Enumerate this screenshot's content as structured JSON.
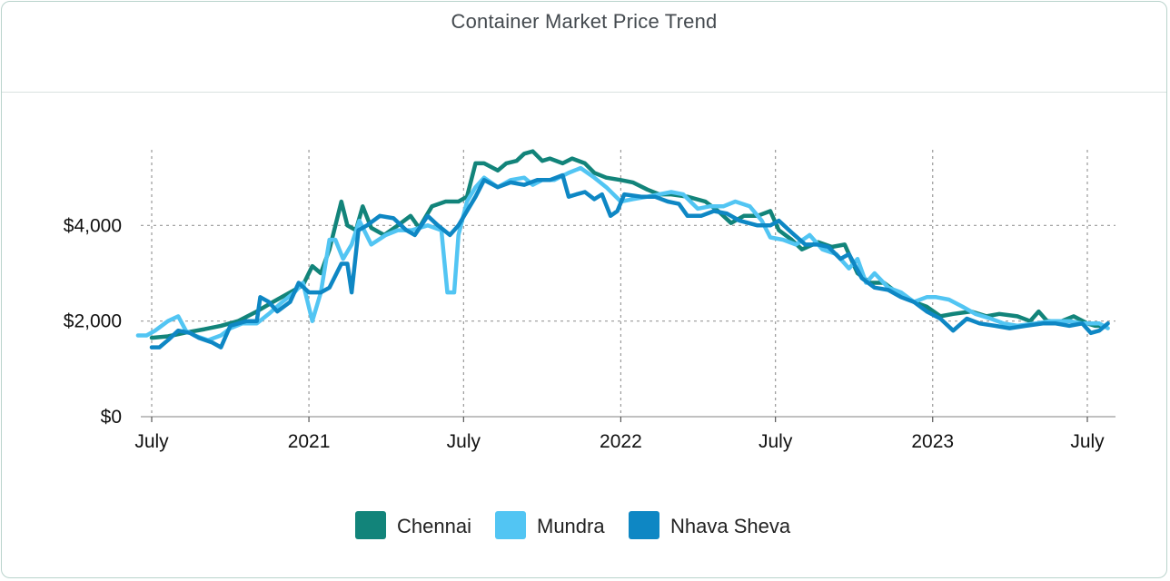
{
  "header": {
    "title": "Container Market Price Trend"
  },
  "colors": {
    "Chennai": "#12847a",
    "Mundra": "#52c5f3",
    "Nhava Sheva": "#0e87c4",
    "grid": "#9a9a9a",
    "border": "#b9d3cc"
  },
  "chart_data": {
    "type": "line",
    "title": "Container Market Price Trend",
    "xlabel": "",
    "ylabel": "",
    "x_ticks": [
      {
        "date": "2020-07-01",
        "label": "July"
      },
      {
        "date": "2021-01-01",
        "label": "2021"
      },
      {
        "date": "2021-07-01",
        "label": "July"
      },
      {
        "date": "2022-01-01",
        "label": "2022"
      },
      {
        "date": "2022-07-01",
        "label": "July"
      },
      {
        "date": "2023-01-01",
        "label": "2023"
      },
      {
        "date": "2023-07-01",
        "label": "July"
      }
    ],
    "y_ticks": [
      {
        "value": 0,
        "label": "$0"
      },
      {
        "value": 2000,
        "label": "$2,000"
      },
      {
        "value": 4000,
        "label": "$4,000"
      }
    ],
    "xlim": [
      "2020-06-15",
      "2023-07-30"
    ],
    "ylim": [
      0,
      6000
    ],
    "grid": true,
    "legend_position": "bottom",
    "series": [
      {
        "name": "Chennai",
        "points": [
          [
            "2020-07-01",
            1650
          ],
          [
            "2020-07-20",
            1680
          ],
          [
            "2020-08-10",
            1760
          ],
          [
            "2020-09-01",
            1830
          ],
          [
            "2020-09-20",
            1900
          ],
          [
            "2020-10-10",
            2000
          ],
          [
            "2020-11-01",
            2200
          ],
          [
            "2020-11-20",
            2400
          ],
          [
            "2020-12-10",
            2600
          ],
          [
            "2020-12-25",
            2750
          ],
          [
            "2021-01-05",
            3150
          ],
          [
            "2021-01-15",
            3000
          ],
          [
            "2021-01-25",
            3500
          ],
          [
            "2021-02-08",
            4500
          ],
          [
            "2021-02-15",
            4000
          ],
          [
            "2021-02-25",
            3900
          ],
          [
            "2021-03-05",
            4400
          ],
          [
            "2021-03-15",
            3950
          ],
          [
            "2021-03-30",
            3800
          ],
          [
            "2021-04-15",
            4000
          ],
          [
            "2021-04-30",
            4200
          ],
          [
            "2021-05-10",
            3950
          ],
          [
            "2021-05-25",
            4400
          ],
          [
            "2021-06-10",
            4500
          ],
          [
            "2021-06-25",
            4500
          ],
          [
            "2021-07-05",
            4600
          ],
          [
            "2021-07-15",
            5300
          ],
          [
            "2021-07-25",
            5300
          ],
          [
            "2021-08-10",
            5150
          ],
          [
            "2021-08-20",
            5300
          ],
          [
            "2021-09-01",
            5350
          ],
          [
            "2021-09-10",
            5500
          ],
          [
            "2021-09-20",
            5550
          ],
          [
            "2021-10-01",
            5350
          ],
          [
            "2021-10-10",
            5400
          ],
          [
            "2021-10-25",
            5300
          ],
          [
            "2021-11-05",
            5400
          ],
          [
            "2021-11-20",
            5300
          ],
          [
            "2021-12-01",
            5100
          ],
          [
            "2021-12-15",
            5000
          ],
          [
            "2022-01-01",
            4950
          ],
          [
            "2022-01-15",
            4900
          ],
          [
            "2022-02-01",
            4750
          ],
          [
            "2022-02-15",
            4650
          ],
          [
            "2022-03-01",
            4650
          ],
          [
            "2022-03-20",
            4600
          ],
          [
            "2022-04-10",
            4500
          ],
          [
            "2022-04-25",
            4300
          ],
          [
            "2022-05-10",
            4050
          ],
          [
            "2022-05-25",
            4200
          ],
          [
            "2022-06-10",
            4200
          ],
          [
            "2022-06-25",
            4300
          ],
          [
            "2022-07-05",
            3900
          ],
          [
            "2022-07-20",
            3700
          ],
          [
            "2022-08-01",
            3500
          ],
          [
            "2022-08-20",
            3650
          ],
          [
            "2022-09-05",
            3550
          ],
          [
            "2022-09-20",
            3600
          ],
          [
            "2022-10-05",
            3000
          ],
          [
            "2022-10-20",
            2800
          ],
          [
            "2022-11-05",
            2800
          ],
          [
            "2022-11-20",
            2600
          ],
          [
            "2022-12-10",
            2400
          ],
          [
            "2022-12-25",
            2300
          ],
          [
            "2023-01-10",
            2100
          ],
          [
            "2023-01-25",
            2150
          ],
          [
            "2023-02-15",
            2200
          ],
          [
            "2023-03-05",
            2100
          ],
          [
            "2023-03-20",
            2150
          ],
          [
            "2023-04-10",
            2100
          ],
          [
            "2023-04-25",
            2000
          ],
          [
            "2023-05-05",
            2200
          ],
          [
            "2023-05-15",
            2000
          ],
          [
            "2023-06-01",
            2000
          ],
          [
            "2023-06-15",
            2100
          ],
          [
            "2023-07-01",
            1950
          ],
          [
            "2023-07-10",
            1900
          ],
          [
            "2023-07-20",
            1900
          ]
        ]
      },
      {
        "name": "Mundra",
        "points": [
          [
            "2020-06-15",
            1700
          ],
          [
            "2020-06-25",
            1700
          ],
          [
            "2020-07-05",
            1800
          ],
          [
            "2020-07-20",
            2000
          ],
          [
            "2020-08-01",
            2100
          ],
          [
            "2020-08-10",
            1800
          ],
          [
            "2020-08-20",
            1700
          ],
          [
            "2020-09-05",
            1600
          ],
          [
            "2020-09-20",
            1700
          ],
          [
            "2020-10-01",
            1850
          ],
          [
            "2020-10-15",
            1950
          ],
          [
            "2020-11-01",
            1950
          ],
          [
            "2020-11-15",
            2150
          ],
          [
            "2020-12-01",
            2400
          ],
          [
            "2020-12-15",
            2600
          ],
          [
            "2020-12-25",
            2800
          ],
          [
            "2021-01-05",
            2000
          ],
          [
            "2021-01-15",
            2600
          ],
          [
            "2021-01-25",
            3700
          ],
          [
            "2021-02-01",
            3700
          ],
          [
            "2021-02-10",
            3300
          ],
          [
            "2021-02-20",
            3600
          ],
          [
            "2021-03-01",
            4100
          ],
          [
            "2021-03-15",
            3600
          ],
          [
            "2021-04-01",
            3800
          ],
          [
            "2021-04-15",
            3900
          ],
          [
            "2021-05-01",
            3900
          ],
          [
            "2021-05-20",
            4000
          ],
          [
            "2021-06-05",
            3900
          ],
          [
            "2021-06-12",
            2600
          ],
          [
            "2021-06-20",
            2600
          ],
          [
            "2021-06-25",
            3800
          ],
          [
            "2021-07-05",
            4500
          ],
          [
            "2021-07-15",
            4800
          ],
          [
            "2021-07-25",
            5000
          ],
          [
            "2021-08-10",
            4800
          ],
          [
            "2021-08-25",
            4950
          ],
          [
            "2021-09-10",
            5000
          ],
          [
            "2021-09-20",
            4850
          ],
          [
            "2021-10-01",
            4950
          ],
          [
            "2021-10-15",
            4950
          ],
          [
            "2021-11-01",
            5100
          ],
          [
            "2021-11-15",
            5200
          ],
          [
            "2021-12-01",
            5000
          ],
          [
            "2021-12-15",
            4800
          ],
          [
            "2022-01-01",
            4500
          ],
          [
            "2022-01-15",
            4550
          ],
          [
            "2022-02-01",
            4600
          ],
          [
            "2022-02-15",
            4650
          ],
          [
            "2022-03-01",
            4700
          ],
          [
            "2022-03-15",
            4650
          ],
          [
            "2022-04-01",
            4350
          ],
          [
            "2022-04-15",
            4400
          ],
          [
            "2022-05-01",
            4400
          ],
          [
            "2022-05-15",
            4500
          ],
          [
            "2022-06-01",
            4400
          ],
          [
            "2022-06-15",
            4100
          ],
          [
            "2022-06-25",
            3750
          ],
          [
            "2022-07-10",
            3700
          ],
          [
            "2022-07-25",
            3600
          ],
          [
            "2022-08-10",
            3800
          ],
          [
            "2022-08-25",
            3500
          ],
          [
            "2022-09-10",
            3400
          ],
          [
            "2022-09-25",
            3100
          ],
          [
            "2022-10-05",
            3300
          ],
          [
            "2022-10-15",
            2800
          ],
          [
            "2022-10-25",
            3000
          ],
          [
            "2022-11-10",
            2700
          ],
          [
            "2022-11-25",
            2600
          ],
          [
            "2022-12-10",
            2400
          ],
          [
            "2022-12-25",
            2500
          ],
          [
            "2023-01-05",
            2500
          ],
          [
            "2023-01-20",
            2450
          ],
          [
            "2023-02-05",
            2300
          ],
          [
            "2023-02-20",
            2150
          ],
          [
            "2023-03-10",
            2050
          ],
          [
            "2023-03-25",
            1950
          ],
          [
            "2023-04-10",
            1900
          ],
          [
            "2023-05-01",
            1950
          ],
          [
            "2023-05-20",
            2000
          ],
          [
            "2023-06-10",
            2000
          ],
          [
            "2023-06-25",
            1950
          ],
          [
            "2023-07-05",
            1950
          ],
          [
            "2023-07-15",
            1950
          ],
          [
            "2023-07-25",
            1850
          ]
        ]
      },
      {
        "name": "Nhava Sheva",
        "points": [
          [
            "2020-07-01",
            1450
          ],
          [
            "2020-07-10",
            1450
          ],
          [
            "2020-07-20",
            1600
          ],
          [
            "2020-08-01",
            1800
          ],
          [
            "2020-08-15",
            1750
          ],
          [
            "2020-08-25",
            1650
          ],
          [
            "2020-09-10",
            1550
          ],
          [
            "2020-09-20",
            1450
          ],
          [
            "2020-10-01",
            1900
          ],
          [
            "2020-10-20",
            2000
          ],
          [
            "2020-11-01",
            2000
          ],
          [
            "2020-11-05",
            2500
          ],
          [
            "2020-11-15",
            2400
          ],
          [
            "2020-11-25",
            2200
          ],
          [
            "2020-12-10",
            2400
          ],
          [
            "2020-12-20",
            2800
          ],
          [
            "2021-01-01",
            2600
          ],
          [
            "2021-01-15",
            2600
          ],
          [
            "2021-01-25",
            2700
          ],
          [
            "2021-02-08",
            3200
          ],
          [
            "2021-02-15",
            3200
          ],
          [
            "2021-02-20",
            2600
          ],
          [
            "2021-02-28",
            3900
          ],
          [
            "2021-03-10",
            4000
          ],
          [
            "2021-03-25",
            4200
          ],
          [
            "2021-04-10",
            4150
          ],
          [
            "2021-04-25",
            3900
          ],
          [
            "2021-05-05",
            3800
          ],
          [
            "2021-05-20",
            4200
          ],
          [
            "2021-06-01",
            4000
          ],
          [
            "2021-06-15",
            3800
          ],
          [
            "2021-06-25",
            4000
          ],
          [
            "2021-07-05",
            4300
          ],
          [
            "2021-07-15",
            4600
          ],
          [
            "2021-07-25",
            4950
          ],
          [
            "2021-08-10",
            4800
          ],
          [
            "2021-08-25",
            4900
          ],
          [
            "2021-09-10",
            4850
          ],
          [
            "2021-09-25",
            4950
          ],
          [
            "2021-10-10",
            4950
          ],
          [
            "2021-10-25",
            5050
          ],
          [
            "2021-11-01",
            4600
          ],
          [
            "2021-11-10",
            4650
          ],
          [
            "2021-11-20",
            4700
          ],
          [
            "2021-12-01",
            4550
          ],
          [
            "2021-12-10",
            4650
          ],
          [
            "2021-12-20",
            4200
          ],
          [
            "2021-12-28",
            4300
          ],
          [
            "2022-01-05",
            4650
          ],
          [
            "2022-01-25",
            4600
          ],
          [
            "2022-02-10",
            4600
          ],
          [
            "2022-02-25",
            4500
          ],
          [
            "2022-03-10",
            4450
          ],
          [
            "2022-03-20",
            4200
          ],
          [
            "2022-04-05",
            4200
          ],
          [
            "2022-04-20",
            4300
          ],
          [
            "2022-05-05",
            4250
          ],
          [
            "2022-05-20",
            4100
          ],
          [
            "2022-06-10",
            4000
          ],
          [
            "2022-06-25",
            4000
          ],
          [
            "2022-07-05",
            4100
          ],
          [
            "2022-07-20",
            3850
          ],
          [
            "2022-08-05",
            3600
          ],
          [
            "2022-08-20",
            3600
          ],
          [
            "2022-09-01",
            3550
          ],
          [
            "2022-09-15",
            3300
          ],
          [
            "2022-09-25",
            3400
          ],
          [
            "2022-10-10",
            2900
          ],
          [
            "2022-10-25",
            2700
          ],
          [
            "2022-11-10",
            2650
          ],
          [
            "2022-11-25",
            2500
          ],
          [
            "2022-12-10",
            2400
          ],
          [
            "2022-12-25",
            2200
          ],
          [
            "2023-01-10",
            2050
          ],
          [
            "2023-01-25",
            1800
          ],
          [
            "2023-02-10",
            2050
          ],
          [
            "2023-02-25",
            1950
          ],
          [
            "2023-03-15",
            1900
          ],
          [
            "2023-04-01",
            1850
          ],
          [
            "2023-04-20",
            1900
          ],
          [
            "2023-05-10",
            1950
          ],
          [
            "2023-05-25",
            1950
          ],
          [
            "2023-06-10",
            1900
          ],
          [
            "2023-06-25",
            1950
          ],
          [
            "2023-07-05",
            1750
          ],
          [
            "2023-07-15",
            1800
          ],
          [
            "2023-07-25",
            1950
          ]
        ]
      }
    ]
  }
}
